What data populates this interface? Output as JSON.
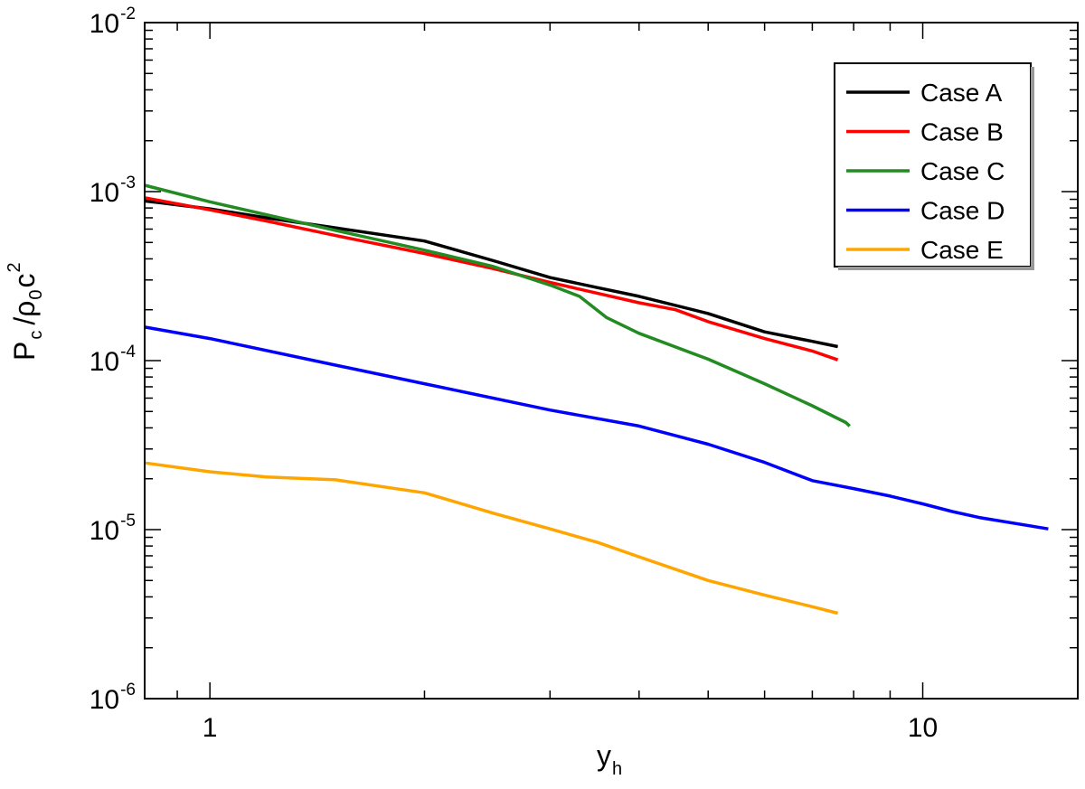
{
  "chart_data": {
    "type": "line",
    "x_scale": "log",
    "y_scale": "log",
    "xlim": [
      0.81,
      16.5
    ],
    "ylim": [
      1e-06,
      0.01
    ],
    "x_ticks": [
      {
        "value": 1,
        "label": "1"
      },
      {
        "value": 10,
        "label": "10"
      }
    ],
    "y_ticks": [
      {
        "value": 0.01,
        "base": "10",
        "exp": "-2"
      },
      {
        "value": 0.001,
        "base": "10",
        "exp": "-3"
      },
      {
        "value": 0.0001,
        "base": "10",
        "exp": "-4"
      },
      {
        "value": 1e-05,
        "base": "10",
        "exp": "-5"
      },
      {
        "value": 1e-06,
        "base": "10",
        "exp": "-6"
      }
    ],
    "xlabel": {
      "main": "y",
      "sub": "h"
    },
    "ylabel": {
      "p": "P",
      "p_sub": "c",
      "slash": "/",
      "rho": "ρ",
      "rho_sub": "0",
      "c": "c",
      "c_sup": "2"
    },
    "grid": false,
    "legend_position": "top-right",
    "series": [
      {
        "name": "Case A",
        "color": "#000000",
        "x": [
          0.81,
          0.85,
          1.0,
          1.2,
          1.5,
          2.0,
          2.5,
          3.0,
          3.5,
          4.0,
          5.0,
          6.0,
          7.0,
          7.6
        ],
        "y": [
          0.00088,
          0.00086,
          0.00079,
          0.0007,
          0.00061,
          0.00051,
          0.00039,
          0.00031,
          0.00027,
          0.00024,
          0.00019,
          0.000148,
          0.00013,
          0.000121
        ]
      },
      {
        "name": "Case B",
        "color": "#ff0000",
        "x": [
          0.81,
          1.0,
          1.2,
          1.5,
          2.0,
          2.5,
          3.0,
          3.5,
          4.0,
          4.5,
          5.0,
          6.0,
          7.0,
          7.6
        ],
        "y": [
          0.00092,
          0.00078,
          0.00067,
          0.00055,
          0.00043,
          0.00035,
          0.00029,
          0.00025,
          0.00022,
          0.0002,
          0.00017,
          0.000135,
          0.000114,
          0.000101
        ]
      },
      {
        "name": "Case C",
        "color": "#228b22",
        "x": [
          0.81,
          1.0,
          1.2,
          1.5,
          2.0,
          2.5,
          3.0,
          3.3,
          3.6,
          4.0,
          5.0,
          6.0,
          7.0,
          7.8,
          7.9
        ],
        "y": [
          0.00109,
          0.00087,
          0.00073,
          0.00059,
          0.00045,
          0.00036,
          0.00028,
          0.00024,
          0.00018,
          0.000145,
          0.000102,
          7.3e-05,
          5.4e-05,
          4.3e-05,
          4.1e-05
        ]
      },
      {
        "name": "Case D",
        "color": "#0000ff",
        "x": [
          0.81,
          1.0,
          1.5,
          2.0,
          3.0,
          4.0,
          5.0,
          6.0,
          7.0,
          8.0,
          9.0,
          10.0,
          11.0,
          12.0,
          15.0
        ],
        "y": [
          0.000158,
          0.000135,
          9.4e-05,
          7.3e-05,
          5.1e-05,
          4.1e-05,
          3.2e-05,
          2.5e-05,
          1.95e-05,
          1.75e-05,
          1.58e-05,
          1.42e-05,
          1.28e-05,
          1.18e-05,
          1.01e-05
        ]
      },
      {
        "name": "Case E",
        "color": "#ffa500",
        "x": [
          0.81,
          1.0,
          1.2,
          1.5,
          2.0,
          2.5,
          3.0,
          3.5,
          4.0,
          5.0,
          6.0,
          7.0,
          7.6
        ],
        "y": [
          2.48e-05,
          2.2e-05,
          2.05e-05,
          1.97e-05,
          1.65e-05,
          1.25e-05,
          1.01e-05,
          8.4e-06,
          6.9e-06,
          5e-06,
          4.1e-06,
          3.5e-06,
          3.2e-06
        ]
      }
    ]
  }
}
